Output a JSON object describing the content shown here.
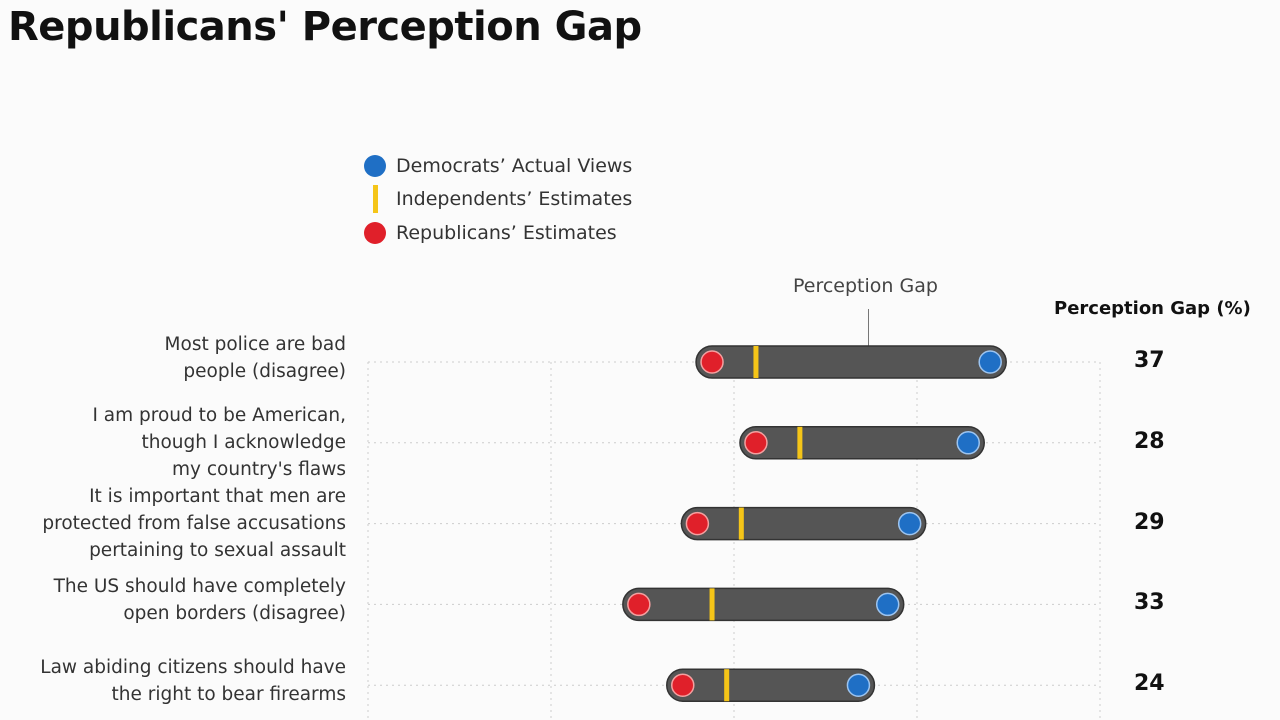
{
  "title": "Republicans' Perception Gap",
  "chart_data": {
    "type": "dumbbell",
    "title": "Republicans' Perception Gap",
    "xlim": [
      0,
      100
    ],
    "grid": true,
    "legend_placement": "top-left",
    "legend": [
      {
        "name": "Democrats’ Actual Views",
        "color": "#1f6fc5",
        "marker": "circle"
      },
      {
        "name": "Independents’ Estimates",
        "color": "#f5c518",
        "marker": "bar"
      },
      {
        "name": "Republicans’ Estimates",
        "color": "#e0202a",
        "marker": "circle"
      }
    ],
    "annotation": "Perception Gap",
    "gap_column_header": "Perception Gap (%)",
    "bar_color": "#555555",
    "rows": [
      {
        "label": [
          "Most police are bad",
          "people (disagree)"
        ],
        "republicans": 47,
        "independents": 53,
        "democrats": 85,
        "gap": "37"
      },
      {
        "label": [
          "I am proud to be American,",
          "though I acknowledge",
          "my country's flaws"
        ],
        "republicans": 53,
        "independents": 59,
        "democrats": 82,
        "gap": "28"
      },
      {
        "label": [
          "It is important that men are",
          "protected from false accusations",
          "pertaining to sexual assault"
        ],
        "republicans": 45,
        "independents": 51,
        "democrats": 74,
        "gap": "29"
      },
      {
        "label": [
          "The US should have completely",
          "open borders (disagree)"
        ],
        "republicans": 37,
        "independents": 47,
        "democrats": 71,
        "gap": "33"
      },
      {
        "label": [
          "Law abiding citizens should have",
          "the right to bear firearms"
        ],
        "republicans": 43,
        "independents": 49,
        "democrats": 67,
        "gap": "24"
      }
    ]
  }
}
